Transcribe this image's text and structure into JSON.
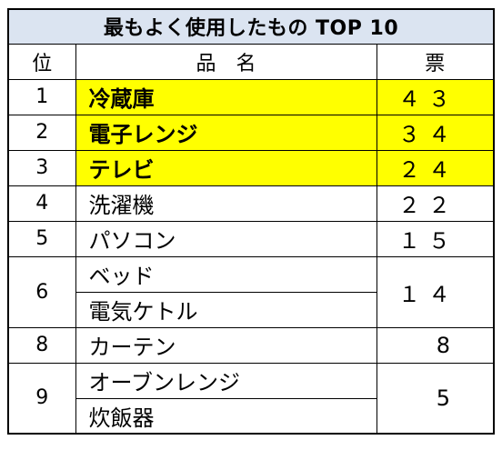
{
  "title": "最もよく使用したもの TOP 10",
  "headers": {
    "rank": "位",
    "item": "品　名",
    "votes": "票"
  },
  "rows": [
    {
      "rank": "1",
      "items": [
        "冷蔵庫"
      ],
      "votes": "４３",
      "highlight": true
    },
    {
      "rank": "2",
      "items": [
        "電子レンジ"
      ],
      "votes": "３４",
      "highlight": true
    },
    {
      "rank": "3",
      "items": [
        "テレビ"
      ],
      "votes": "２４",
      "highlight": true
    },
    {
      "rank": "4",
      "items": [
        "洗濯機"
      ],
      "votes": "２２",
      "highlight": false
    },
    {
      "rank": "5",
      "items": [
        "パソコン"
      ],
      "votes": "１５",
      "highlight": false
    },
    {
      "rank": "6",
      "items": [
        "ベッド",
        "電気ケトル"
      ],
      "votes": "１４",
      "highlight": false
    },
    {
      "rank": "8",
      "items": [
        "カーテン"
      ],
      "votes": "8",
      "highlight": false
    },
    {
      "rank": "9",
      "items": [
        "オーブンレンジ",
        "炊飯器"
      ],
      "votes": "5",
      "highlight": false
    }
  ],
  "colors": {
    "title_bg": "#dbe4f1",
    "highlight": "#ffff00",
    "border": "#000000"
  }
}
